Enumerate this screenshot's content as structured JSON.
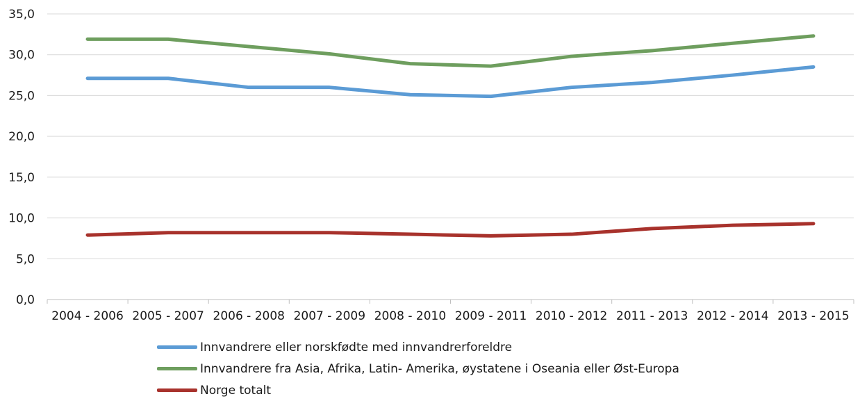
{
  "chart_data": {
    "type": "line",
    "title": "",
    "xlabel": "",
    "ylabel": "",
    "categories": [
      "2004 - 2006",
      "2005 - 2007",
      "2006 - 2008",
      "2007 - 2009",
      "2008 - 2010",
      "2009 - 2011",
      "2010 - 2012",
      "2011 - 2013",
      "2012 - 2014",
      "2013 - 2015"
    ],
    "ylim": [
      0,
      35
    ],
    "yticks": [
      "0,0",
      "5,0",
      "10,0",
      "15,0",
      "20,0",
      "25,0",
      "30,0",
      "35,0"
    ],
    "grid": true,
    "legend_position": "bottom",
    "series": [
      {
        "name": "Innvandrere eller norskfødte med innvandrerforeldre",
        "color": "#5b9bd5",
        "values": [
          27.1,
          27.1,
          26.0,
          26.0,
          25.1,
          24.9,
          26.0,
          26.6,
          27.5,
          28.5
        ]
      },
      {
        "name": "Innvandrere fra Asia, Afrika, Latin- Amerika, øystatene i Oseania eller Øst-Europa",
        "color": "#6e9e5e",
        "values": [
          31.9,
          31.9,
          31.0,
          30.1,
          28.9,
          28.6,
          29.8,
          30.5,
          31.4,
          32.3
        ]
      },
      {
        "name": "Norge totalt",
        "color": "#a8322c",
        "values": [
          7.9,
          8.2,
          8.2,
          8.2,
          8.0,
          7.8,
          8.0,
          8.7,
          9.1,
          9.3
        ]
      }
    ]
  }
}
